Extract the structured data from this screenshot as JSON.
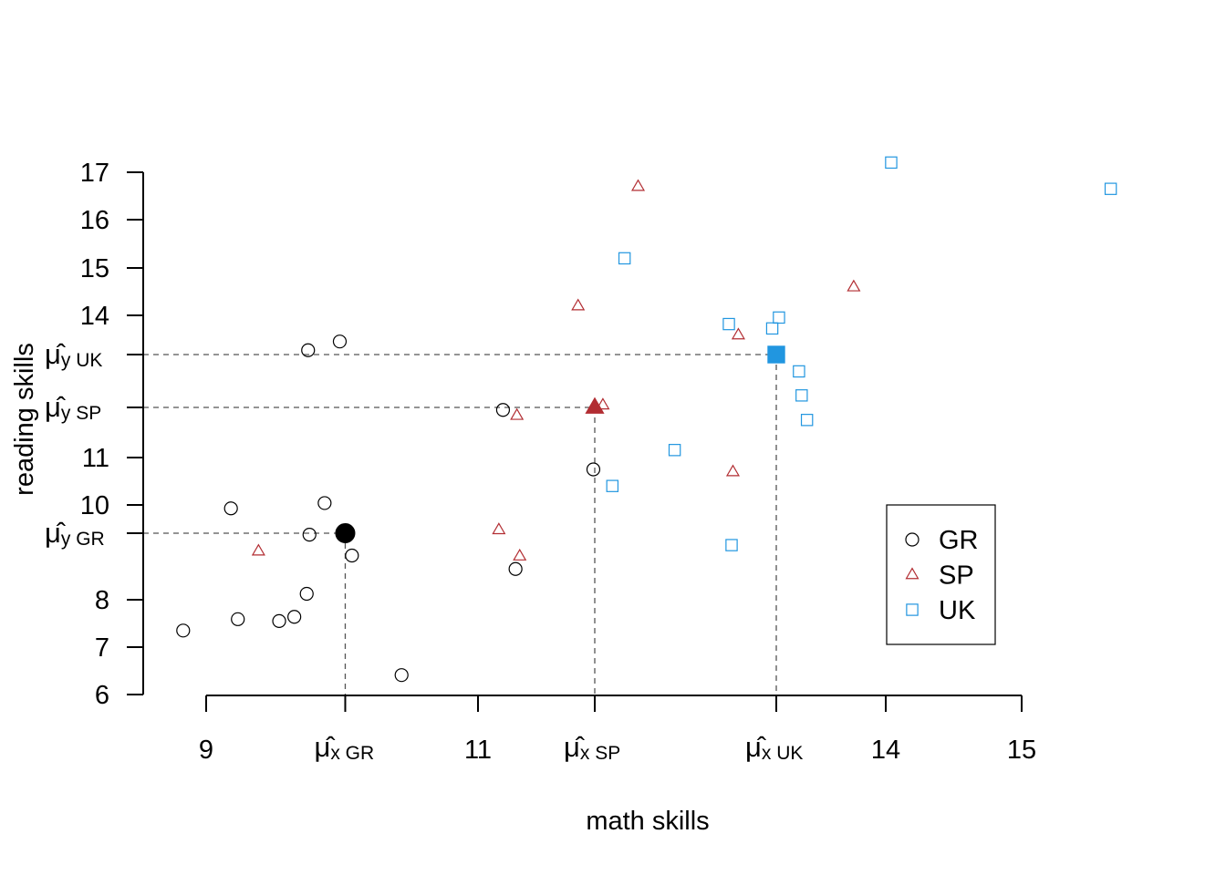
{
  "chart_data": {
    "type": "scatter",
    "xlabel": "math skills",
    "ylabel": "reading skills",
    "xlim": [
      8.8,
      15.1
    ],
    "ylim": [
      6,
      17.2
    ],
    "x_ticks": [
      {
        "value": 9,
        "label": "9"
      },
      {
        "value": 11,
        "label": "11"
      },
      {
        "value": 14,
        "label": "14"
      },
      {
        "value": 15,
        "label": "15"
      }
    ],
    "y_ticks": [
      {
        "value": 6,
        "label": "6"
      },
      {
        "value": 7,
        "label": "7"
      },
      {
        "value": 8,
        "label": "8"
      },
      {
        "value": 10,
        "label": "10"
      },
      {
        "value": 11,
        "label": "11"
      },
      {
        "value": 14,
        "label": "14"
      },
      {
        "value": 15,
        "label": "15"
      },
      {
        "value": 16,
        "label": "16"
      },
      {
        "value": 17,
        "label": "17"
      }
    ],
    "mean_tick_symbol": "μ̂",
    "series": [
      {
        "name": "GR",
        "marker": "circle",
        "color": "#000000",
        "mean": {
          "x": 10.01,
          "y": 9.34,
          "x_label": "x GR",
          "y_label": "y GR"
        },
        "points": [
          {
            "x": 8.82,
            "y": 7.35
          },
          {
            "x": 9.18,
            "y": 9.92
          },
          {
            "x": 9.23,
            "y": 7.59
          },
          {
            "x": 9.53,
            "y": 7.55
          },
          {
            "x": 9.64,
            "y": 7.64
          },
          {
            "x": 9.73,
            "y": 8.12
          },
          {
            "x": 9.74,
            "y": 13.2
          },
          {
            "x": 9.75,
            "y": 9.31
          },
          {
            "x": 9.86,
            "y": 10.04
          },
          {
            "x": 9.97,
            "y": 13.4
          },
          {
            "x": 10.06,
            "y": 8.89
          },
          {
            "x": 10.43,
            "y": 6.41
          },
          {
            "x": 11.18,
            "y": 11.95
          },
          {
            "x": 11.27,
            "y": 8.62
          },
          {
            "x": 11.83,
            "y": 10.75
          }
        ]
      },
      {
        "name": "SP",
        "marker": "triangle",
        "color": "#b22d32",
        "mean": {
          "x": 11.84,
          "y": 12.0,
          "x_label": "x SP",
          "y_label": "y SP"
        },
        "points": [
          {
            "x": 9.38,
            "y": 8.98
          },
          {
            "x": 11.15,
            "y": 9.42
          },
          {
            "x": 11.28,
            "y": 11.84
          },
          {
            "x": 11.3,
            "y": 8.88
          },
          {
            "x": 11.72,
            "y": 14.2
          },
          {
            "x": 11.9,
            "y": 12.05
          },
          {
            "x": 12.16,
            "y": 16.7
          },
          {
            "x": 12.86,
            "y": 10.7
          },
          {
            "x": 12.9,
            "y": 13.55
          },
          {
            "x": 13.76,
            "y": 14.6
          }
        ]
      },
      {
        "name": "UK",
        "marker": "square",
        "color": "#2196e0",
        "mean": {
          "x": 13.18,
          "y": 13.1,
          "x_label": "x UK",
          "y_label": "y UK"
        },
        "points": [
          {
            "x": 11.97,
            "y": 10.4
          },
          {
            "x": 12.06,
            "y": 15.2
          },
          {
            "x": 12.43,
            "y": 11.15
          },
          {
            "x": 12.83,
            "y": 13.8
          },
          {
            "x": 12.85,
            "y": 9.1
          },
          {
            "x": 13.15,
            "y": 13.7
          },
          {
            "x": 13.2,
            "y": 13.95
          },
          {
            "x": 13.35,
            "y": 12.75
          },
          {
            "x": 13.37,
            "y": 12.25
          },
          {
            "x": 13.41,
            "y": 11.75
          },
          {
            "x": 14.04,
            "y": 17.2
          },
          {
            "x": 15.67,
            "y": 16.65
          }
        ]
      }
    ],
    "legend": {
      "position": "bottom-right",
      "entries": [
        "GR",
        "SP",
        "UK"
      ]
    },
    "grid": false
  }
}
